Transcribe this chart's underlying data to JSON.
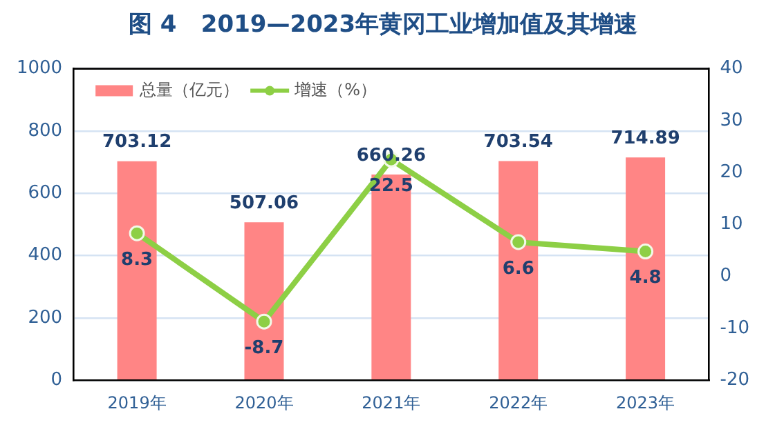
{
  "chart_data": {
    "type": "bar",
    "title": "图 4   2019—2023年黄冈工业增加值及其增速",
    "categories": [
      "2019年",
      "2020年",
      "2021年",
      "2022年",
      "2023年"
    ],
    "series": [
      {
        "name": "总量（亿元）",
        "color": "#ff8585",
        "values": [
          703.12,
          507.06,
          660.26,
          703.54,
          714.89
        ]
      },
      {
        "name": "增速（%）",
        "type": "line",
        "axis": "y2",
        "color": "#8dcf45",
        "values": [
          8.3,
          -8.7,
          22.5,
          6.6,
          4.8
        ]
      }
    ],
    "ylim": [
      0,
      1000
    ],
    "yticks": [
      0,
      200,
      400,
      600,
      800,
      1000
    ],
    "y2lim": [
      -20,
      40
    ],
    "y2ticks": [
      -20,
      -10,
      0,
      10,
      20,
      30,
      40
    ],
    "grid": "y",
    "legend": "top left",
    "marker": "circle",
    "line_style": "solid",
    "data_labels": true
  }
}
